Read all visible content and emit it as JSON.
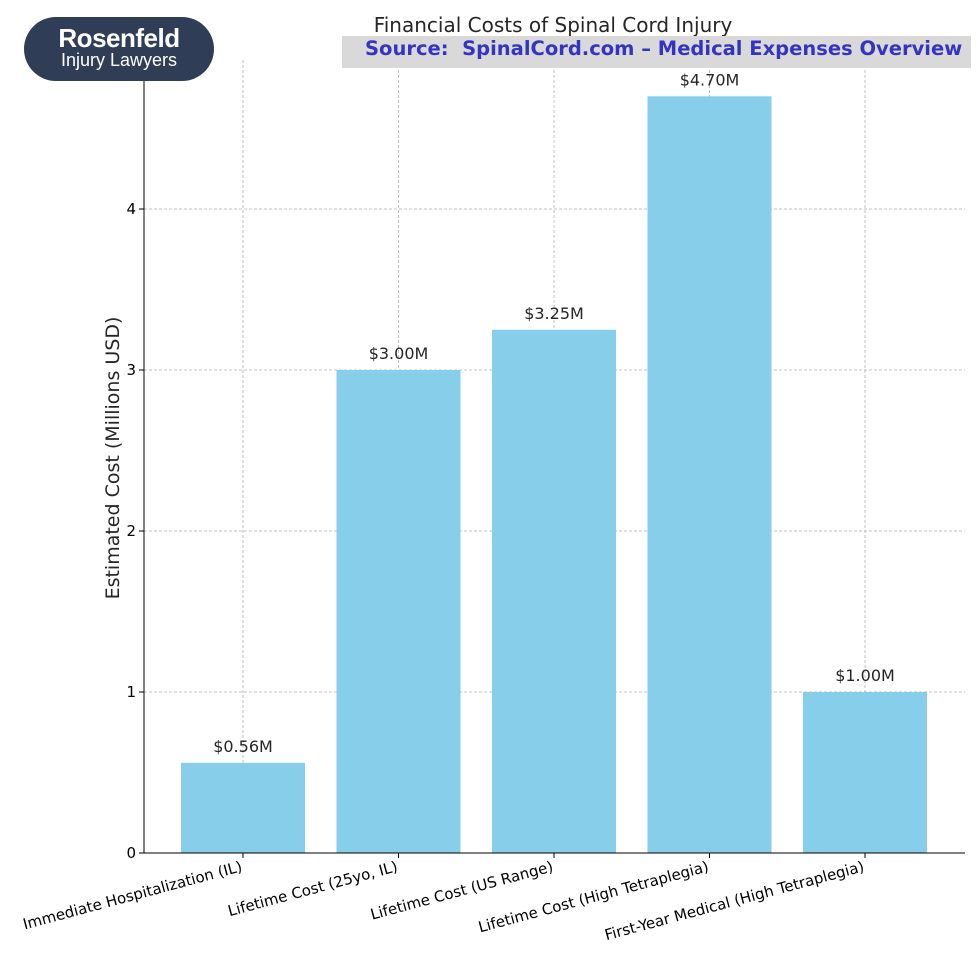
{
  "logo": {
    "name": "Rosenfeld",
    "subtitle": "Injury Lawyers"
  },
  "source_banner": "Source:  SpinalCord.com – Medical Expenses Overview",
  "chart_data": {
    "type": "bar",
    "title": "Financial Costs of Spinal Cord Injury",
    "xlabel": "",
    "ylabel": "Estimated Cost (Millions USD)",
    "categories": [
      "Immediate Hospitalization (IL)",
      "Lifetime Cost (25yo, IL)",
      "Lifetime Cost (US Range)",
      "Lifetime Cost (High Tetraplegia)",
      "First-Year Medical (High Tetraplegia)"
    ],
    "values": [
      0.56,
      3.0,
      3.25,
      4.7,
      1.0
    ],
    "data_labels": [
      "$0.56M",
      "$3.00M",
      "$3.25M",
      "$4.70M",
      "$1.00M"
    ],
    "ylim": [
      0,
      4.95
    ],
    "yticks": [
      0,
      1,
      2,
      3,
      4
    ],
    "grid": true,
    "bar_color": "#87ceeb"
  }
}
